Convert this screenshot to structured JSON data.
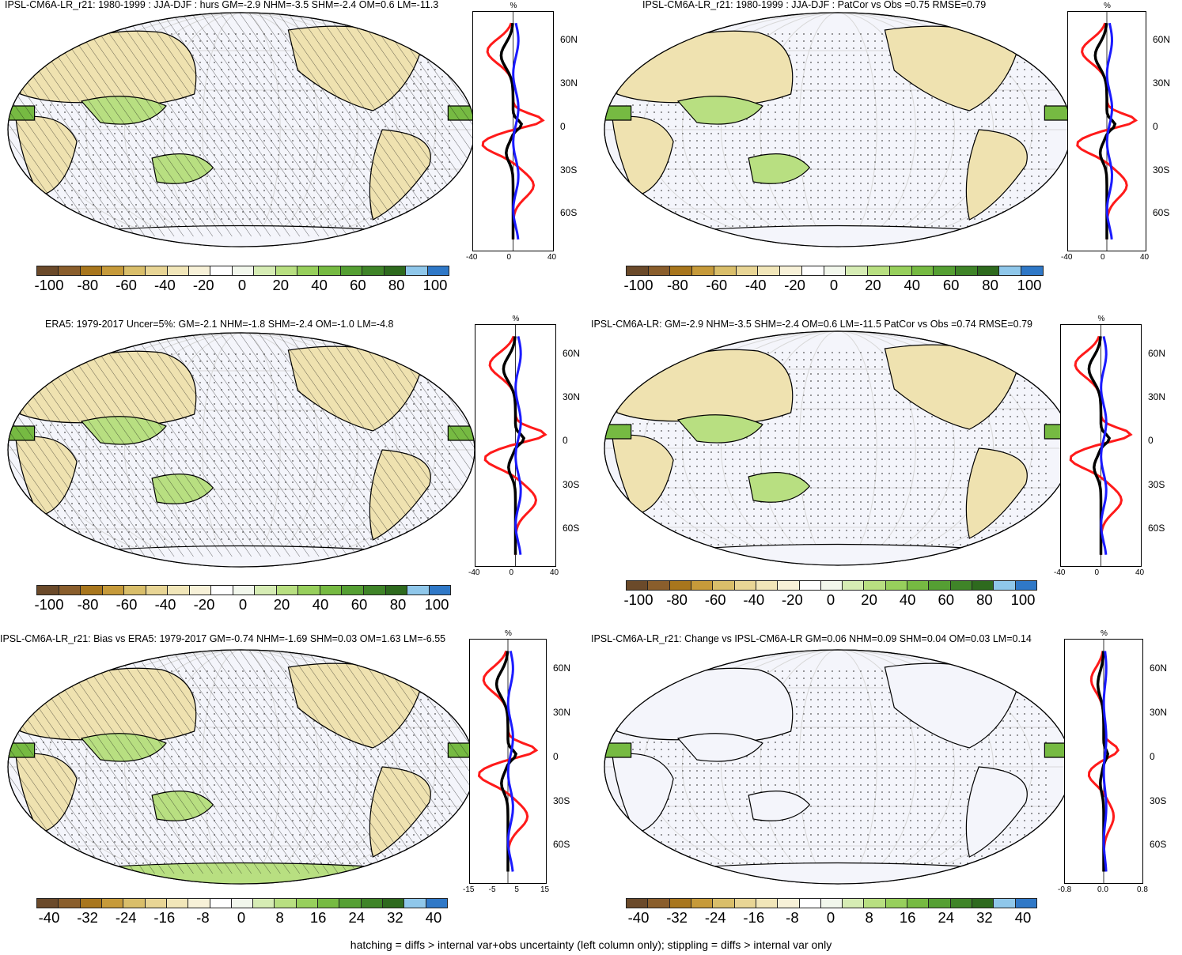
{
  "footer": "hatching = diffs > internal var+obs uncertainty (left column only); stippling = diffs > internal var only",
  "colors": {
    "ocean": "#f4f5fb",
    "land_outline": "#000000",
    "profile_lines": {
      "red": "#ff1a1a",
      "black": "#000000",
      "blue": "#1a1aff"
    },
    "colorbar": [
      "#6b4a2a",
      "#8a5e2c",
      "#a8761d",
      "#c69a3a",
      "#d9be6a",
      "#e8d595",
      "#f1e6b9",
      "#f7f1d8",
      "#ffffff",
      "#f2f7ec",
      "#d6ecb4",
      "#b8df81",
      "#97cf5c",
      "#76ba42",
      "#559f33",
      "#3f8428",
      "#2e6a1e",
      "#8fc7ea",
      "#2f78c7"
    ]
  },
  "icons": {
    "map": "robinson-world-map-icon",
    "profile": "zonal-mean-profile-icon"
  },
  "panels": [
    {
      "title": "IPSL-CM6A-LR_r21: 1980-1999 : JJA-DJF : hurs GM=-2.9 NHM=-3.5 SHM=-2.4 OM=0.6 LM=-11.3",
      "profile_unit": "%",
      "lat_labels": [
        "60N",
        "30N",
        "0",
        "30S",
        "60S"
      ],
      "x_ticks": [
        "-40",
        "0",
        "40"
      ],
      "colorbar_labels": [
        "-100",
        "-80",
        "-60",
        "-40",
        "-20",
        "0",
        "20",
        "40",
        "60",
        "80",
        "100"
      ],
      "hatching": true
    },
    {
      "title": "IPSL-CM6A-LR_r21: 1980-1999 : JJA-DJF : PatCor vs Obs =0.75 RMSE=0.79",
      "profile_unit": "%",
      "lat_labels": [
        "60N",
        "30N",
        "0",
        "30S",
        "60S"
      ],
      "x_ticks": [
        "-40",
        "0",
        "40"
      ],
      "colorbar_labels": [
        "-100",
        "-80",
        "-60",
        "-40",
        "-20",
        "0",
        "20",
        "40",
        "60",
        "80",
        "100"
      ],
      "hatching": false
    },
    {
      "title": "ERA5: 1979-2017 Uncer=5%: GM=-2.1 NHM=-1.8 SHM=-2.4 OM=-1.0 LM=-4.8",
      "profile_unit": "%",
      "lat_labels": [
        "60N",
        "30N",
        "0",
        "30S",
        "60S"
      ],
      "x_ticks": [
        "-40",
        "0",
        "40"
      ],
      "colorbar_labels": [
        "-100",
        "-80",
        "-60",
        "-40",
        "-20",
        "0",
        "20",
        "40",
        "60",
        "80",
        "100"
      ],
      "hatching": true
    },
    {
      "title": "IPSL-CM6A-LR: GM=-2.9 NHM=-3.5 SHM=-2.4 OM=0.6 LM=-11.5 PatCor vs Obs =0.74 RMSE=0.79",
      "profile_unit": "%",
      "lat_labels": [
        "60N",
        "30N",
        "0",
        "30S",
        "60S"
      ],
      "x_ticks": [
        "-40",
        "0",
        "40"
      ],
      "colorbar_labels": [
        "-100",
        "-80",
        "-60",
        "-40",
        "-20",
        "0",
        "20",
        "40",
        "60",
        "80",
        "100"
      ],
      "hatching": false
    },
    {
      "title": "IPSL-CM6A-LR_r21: Bias vs ERA5: 1979-2017 GM=-0.74 NHM=-1.69 SHM=0.03 OM=1.63 LM=-6.55",
      "profile_unit": "%",
      "lat_labels": [
        "60N",
        "30N",
        "0",
        "30S",
        "60S"
      ],
      "x_ticks": [
        "-15",
        "-5",
        "5",
        "15"
      ],
      "colorbar_labels": [
        "-40",
        "-32",
        "-24",
        "-16",
        "-8",
        "0",
        "8",
        "16",
        "24",
        "32",
        "40"
      ],
      "hatching": true
    },
    {
      "title": "IPSL-CM6A-LR_r21: Change vs IPSL-CM6A-LR GM=0.06 NHM=0.09 SHM=0.04 OM=0.03 LM=0.14",
      "profile_unit": "%",
      "lat_labels": [
        "60N",
        "30N",
        "0",
        "30S",
        "60S"
      ],
      "x_ticks": [
        "-0.8",
        "0.0",
        "0.8"
      ],
      "colorbar_labels": [
        "-40",
        "-32",
        "-24",
        "-16",
        "-8",
        "0",
        "8",
        "16",
        "24",
        "32",
        "40"
      ],
      "hatching": false
    }
  ]
}
